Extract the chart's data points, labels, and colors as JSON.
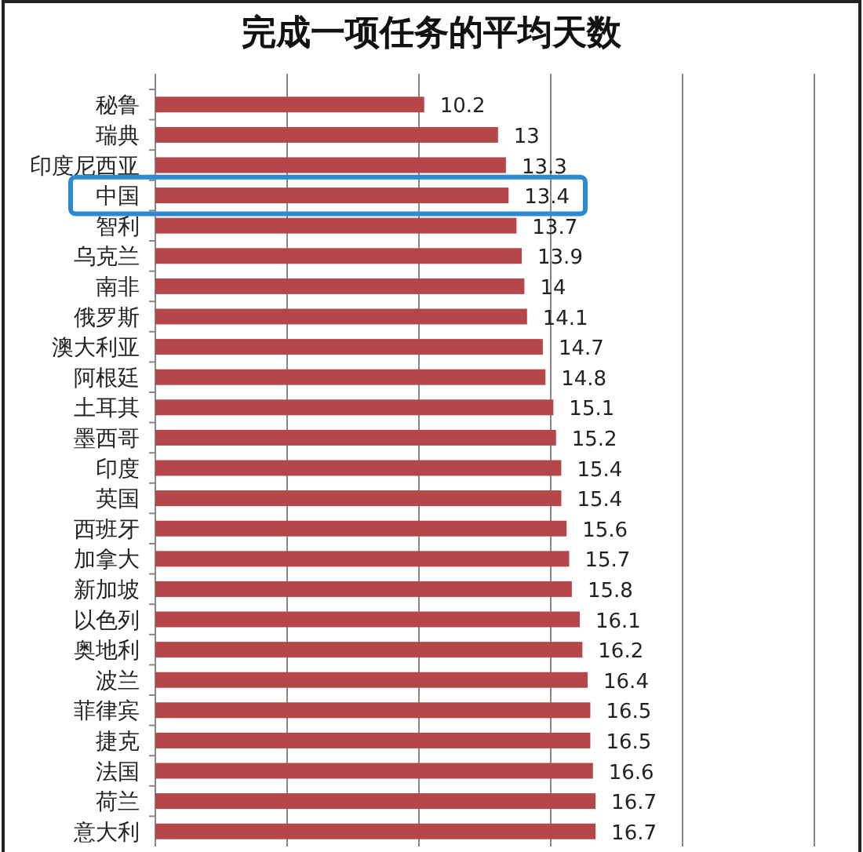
{
  "chart_data": {
    "type": "bar",
    "orientation": "horizontal",
    "title": "完成一项任务的平均天数",
    "categories": [
      "秘鲁",
      "瑞典",
      "印度尼西亚",
      "中国",
      "智利",
      "乌克兰",
      "南非",
      "俄罗斯",
      "澳大利亚",
      "阿根廷",
      "土耳其",
      "墨西哥",
      "印度",
      "英国",
      "西班牙",
      "加拿大",
      "新加坡",
      "以色列",
      "奥地利",
      "波兰",
      "菲律宾",
      "捷克",
      "法国",
      "荷兰",
      "意大利"
    ],
    "values": [
      10.2,
      13,
      13.3,
      13.4,
      13.7,
      13.9,
      14,
      14.1,
      14.7,
      14.8,
      15.1,
      15.2,
      15.4,
      15.4,
      15.6,
      15.7,
      15.8,
      16.1,
      16.2,
      16.4,
      16.5,
      16.5,
      16.6,
      16.7,
      16.7
    ],
    "color": "#b5474b",
    "data_labels": true,
    "xlim": [
      0,
      25
    ],
    "xticks": [
      {
        "value": 0,
        "label": null
      },
      {
        "value": 5,
        "label": null
      },
      {
        "value": 10,
        "label": null
      },
      {
        "value": 15,
        "label": null
      },
      {
        "value": 20,
        "label": null
      },
      {
        "value": 25,
        "label": null
      }
    ],
    "grid": "x",
    "tick_labels": "y"
  }
}
